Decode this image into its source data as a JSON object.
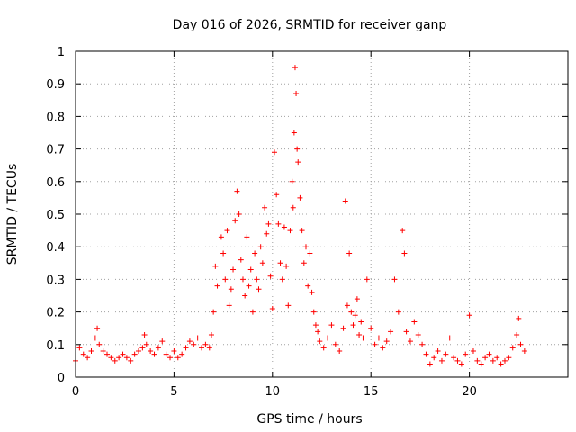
{
  "chart_data": {
    "type": "scatter",
    "title": "Day 016 of 2026, SRMTID for receiver ganp",
    "xlabel": "GPS time / hours",
    "ylabel": "SRMTID / TECUs",
    "xlim": [
      0,
      25
    ],
    "ylim": [
      0,
      1
    ],
    "xticks": [
      0,
      5,
      10,
      15,
      20
    ],
    "xtick_labels": [
      "0",
      "5",
      "10",
      "15",
      "20"
    ],
    "yticks": [
      0,
      0.1,
      0.2,
      0.3,
      0.4,
      0.5,
      0.6,
      0.7,
      0.8,
      0.9,
      1
    ],
    "ytick_labels": [
      "0",
      "0.1",
      "0.2",
      "0.3",
      "0.4",
      "0.5",
      "0.6",
      "0.7",
      "0.8",
      "0.9",
      "1"
    ],
    "grid": true,
    "marker": "plus",
    "series": [
      {
        "name": "SRMTID",
        "color": "#ff0000",
        "x": [
          0.0,
          0.2,
          0.4,
          0.6,
          0.8,
          1.0,
          1.1,
          1.2,
          1.4,
          1.6,
          1.8,
          2.0,
          2.2,
          2.4,
          2.6,
          2.8,
          3.0,
          3.2,
          3.4,
          3.5,
          3.6,
          3.8,
          4.0,
          4.2,
          4.4,
          4.6,
          4.8,
          5.0,
          5.2,
          5.4,
          5.6,
          5.8,
          6.0,
          6.2,
          6.4,
          6.6,
          6.8,
          6.9,
          7.0,
          7.1,
          7.2,
          7.4,
          7.5,
          7.6,
          7.7,
          7.8,
          7.9,
          8.0,
          8.1,
          8.2,
          8.3,
          8.4,
          8.5,
          8.6,
          8.7,
          8.8,
          8.9,
          9.0,
          9.1,
          9.2,
          9.3,
          9.4,
          9.5,
          9.6,
          9.7,
          9.8,
          9.9,
          10.0,
          10.1,
          10.2,
          10.3,
          10.4,
          10.5,
          10.6,
          10.7,
          10.8,
          10.9,
          11.0,
          11.05,
          11.1,
          11.15,
          11.2,
          11.25,
          11.3,
          11.4,
          11.5,
          11.6,
          11.7,
          11.8,
          11.9,
          12.0,
          12.1,
          12.2,
          12.3,
          12.4,
          12.6,
          12.8,
          13.0,
          13.2,
          13.4,
          13.6,
          13.7,
          13.8,
          13.9,
          14.0,
          14.1,
          14.2,
          14.3,
          14.4,
          14.5,
          14.6,
          14.8,
          15.0,
          15.2,
          15.4,
          15.6,
          15.8,
          16.0,
          16.2,
          16.4,
          16.6,
          16.7,
          16.8,
          17.0,
          17.2,
          17.4,
          17.6,
          17.8,
          18.0,
          18.2,
          18.4,
          18.6,
          18.8,
          19.0,
          19.2,
          19.4,
          19.6,
          19.8,
          20.0,
          20.2,
          20.4,
          20.6,
          20.8,
          21.0,
          21.2,
          21.4,
          21.6,
          21.8,
          22.0,
          22.2,
          22.4,
          22.5,
          22.6,
          22.8
        ],
        "values": [
          0.05,
          0.09,
          0.07,
          0.06,
          0.08,
          0.12,
          0.15,
          0.1,
          0.08,
          0.07,
          0.06,
          0.05,
          0.06,
          0.07,
          0.06,
          0.05,
          0.07,
          0.08,
          0.09,
          0.13,
          0.1,
          0.08,
          0.07,
          0.09,
          0.11,
          0.07,
          0.06,
          0.08,
          0.06,
          0.07,
          0.09,
          0.11,
          0.1,
          0.12,
          0.09,
          0.1,
          0.09,
          0.13,
          0.2,
          0.34,
          0.28,
          0.43,
          0.38,
          0.3,
          0.45,
          0.22,
          0.27,
          0.33,
          0.48,
          0.57,
          0.5,
          0.36,
          0.3,
          0.25,
          0.43,
          0.28,
          0.33,
          0.2,
          0.38,
          0.3,
          0.27,
          0.4,
          0.35,
          0.52,
          0.44,
          0.47,
          0.31,
          0.21,
          0.69,
          0.56,
          0.47,
          0.35,
          0.3,
          0.46,
          0.34,
          0.22,
          0.45,
          0.6,
          0.52,
          0.75,
          0.95,
          0.87,
          0.7,
          0.66,
          0.55,
          0.45,
          0.35,
          0.4,
          0.28,
          0.38,
          0.26,
          0.2,
          0.16,
          0.14,
          0.11,
          0.09,
          0.12,
          0.16,
          0.1,
          0.08,
          0.15,
          0.54,
          0.22,
          0.38,
          0.2,
          0.16,
          0.19,
          0.24,
          0.13,
          0.17,
          0.12,
          0.3,
          0.15,
          0.1,
          0.12,
          0.09,
          0.11,
          0.14,
          0.3,
          0.2,
          0.45,
          0.38,
          0.14,
          0.11,
          0.17,
          0.13,
          0.1,
          0.07,
          0.04,
          0.06,
          0.08,
          0.05,
          0.07,
          0.12,
          0.06,
          0.05,
          0.04,
          0.07,
          0.19,
          0.08,
          0.05,
          0.04,
          0.06,
          0.07,
          0.05,
          0.06,
          0.04,
          0.05,
          0.06,
          0.09,
          0.13,
          0.18,
          0.1,
          0.08
        ]
      }
    ]
  }
}
